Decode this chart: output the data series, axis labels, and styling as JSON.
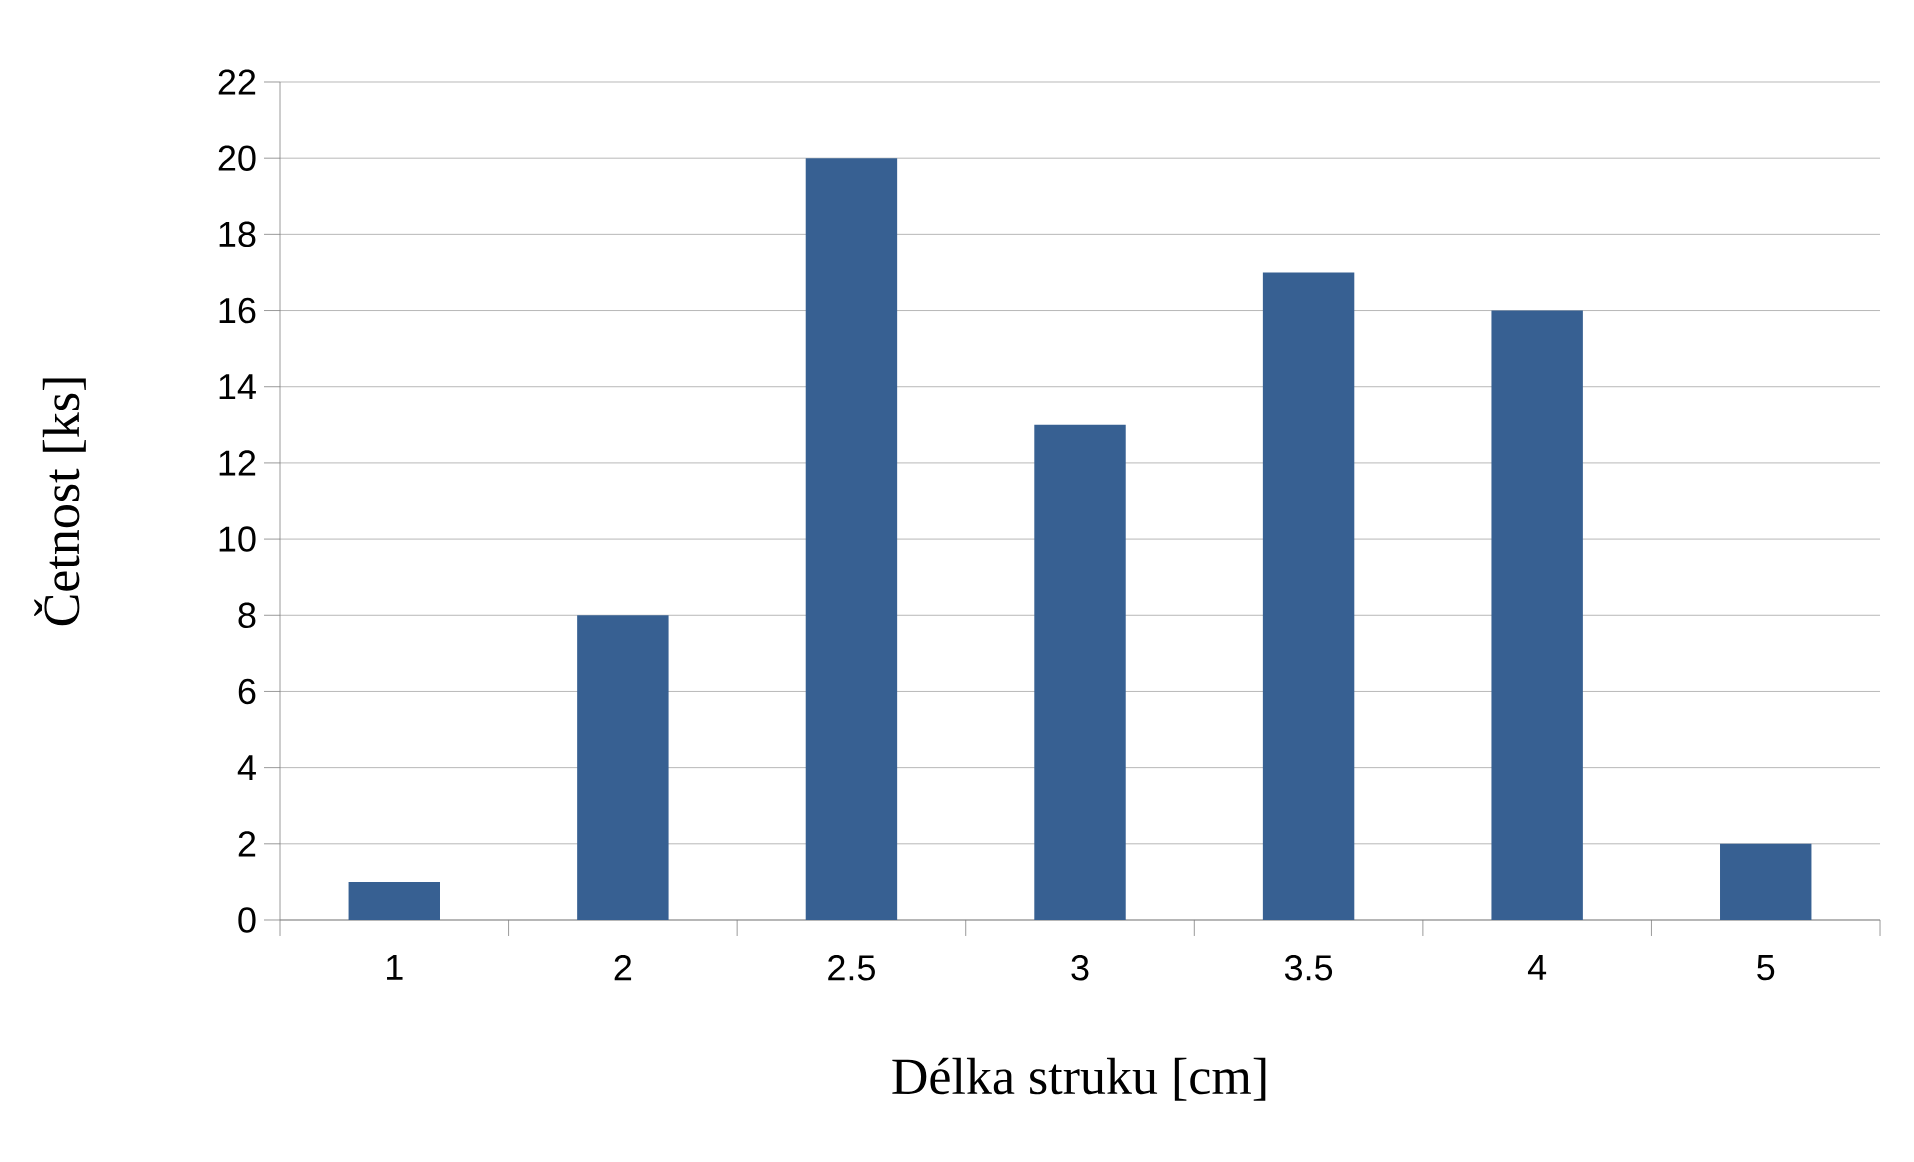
{
  "chart_data": {
    "type": "bar",
    "xlabel": "Délka struku [cm]",
    "ylabel": "Četnost [ks]",
    "categories": [
      "1",
      "2",
      "2.5",
      "3",
      "3.5",
      "4",
      "5"
    ],
    "values": [
      1,
      8,
      20,
      13,
      17,
      16,
      2
    ],
    "color": "#376092",
    "ylim": [
      0,
      22
    ],
    "yticks": [
      0,
      2,
      4,
      6,
      8,
      10,
      12,
      14,
      16,
      18,
      20,
      22
    ],
    "grid": "y"
  }
}
